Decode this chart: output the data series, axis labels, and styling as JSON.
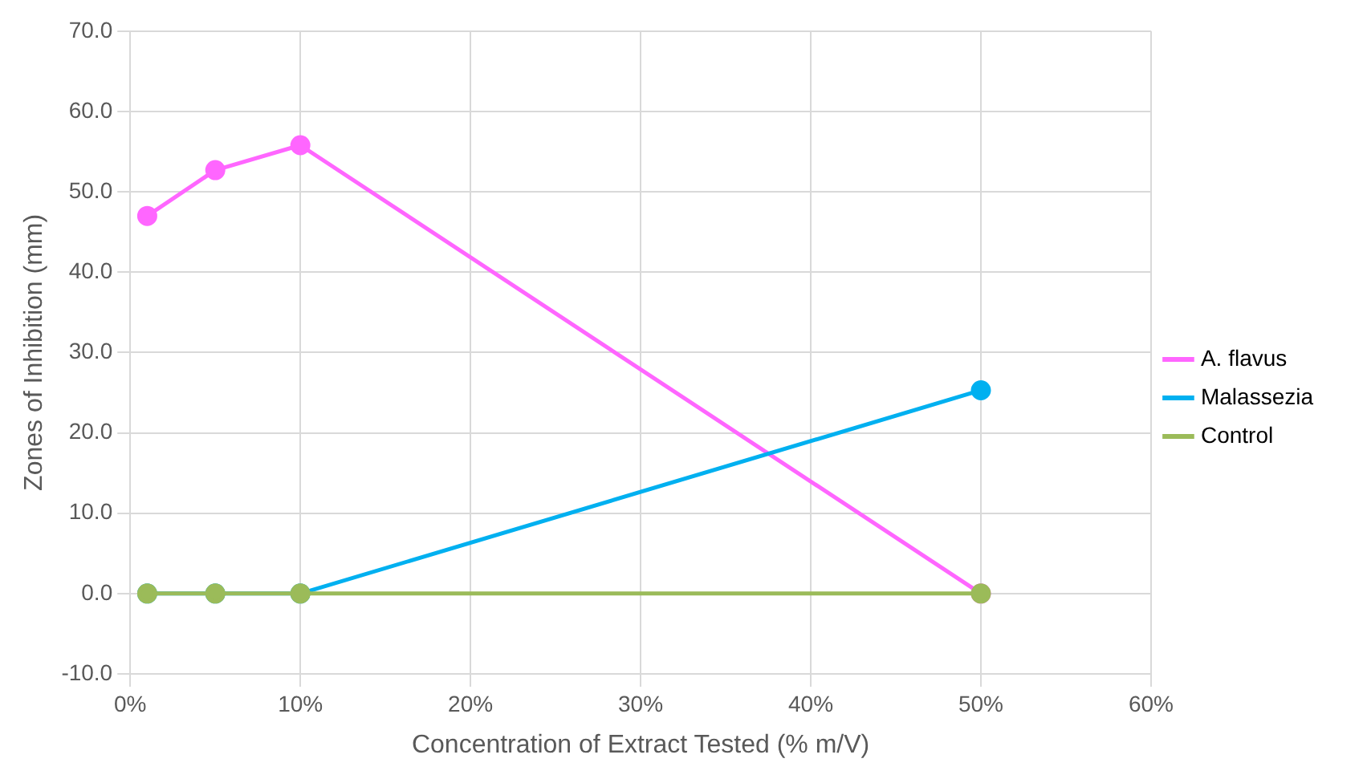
{
  "chart_data": {
    "type": "line",
    "xlabel": "Concentration of Extract Tested (% m/V)",
    "ylabel": "Zones of Inhibition (mm)",
    "x": [
      1,
      5,
      10,
      50
    ],
    "series": [
      {
        "name": "A. flavus",
        "color": "#ff66ff",
        "values": [
          47.0,
          52.7,
          55.8,
          0.0
        ]
      },
      {
        "name": "Malassezia",
        "color": "#00b0f0",
        "values": [
          0.0,
          0.0,
          0.0,
          25.3
        ]
      },
      {
        "name": "Control",
        "color": "#9bbb59",
        "values": [
          0.0,
          0.0,
          0.0,
          0.0
        ]
      }
    ],
    "xlim": [
      0,
      60
    ],
    "xticks": [
      {
        "value": 0,
        "label": "0%"
      },
      {
        "value": 10,
        "label": "10%"
      },
      {
        "value": 20,
        "label": "20%"
      },
      {
        "value": 30,
        "label": "30%"
      },
      {
        "value": 40,
        "label": "40%"
      },
      {
        "value": 50,
        "label": "50%"
      },
      {
        "value": 60,
        "label": "60%"
      }
    ],
    "ylim": [
      -10,
      70
    ],
    "yticks": [
      {
        "value": -10,
        "label": "-10.0"
      },
      {
        "value": 0,
        "label": "0.0"
      },
      {
        "value": 10,
        "label": "10.0"
      },
      {
        "value": 20,
        "label": "20.0"
      },
      {
        "value": 30,
        "label": "30.0"
      },
      {
        "value": 40,
        "label": "40.0"
      },
      {
        "value": 50,
        "label": "50.0"
      },
      {
        "value": 60,
        "label": "60.0"
      },
      {
        "value": 70,
        "label": "70.0"
      }
    ],
    "grid": true,
    "legend": "right",
    "marker": "circle",
    "line_style": "solid"
  }
}
